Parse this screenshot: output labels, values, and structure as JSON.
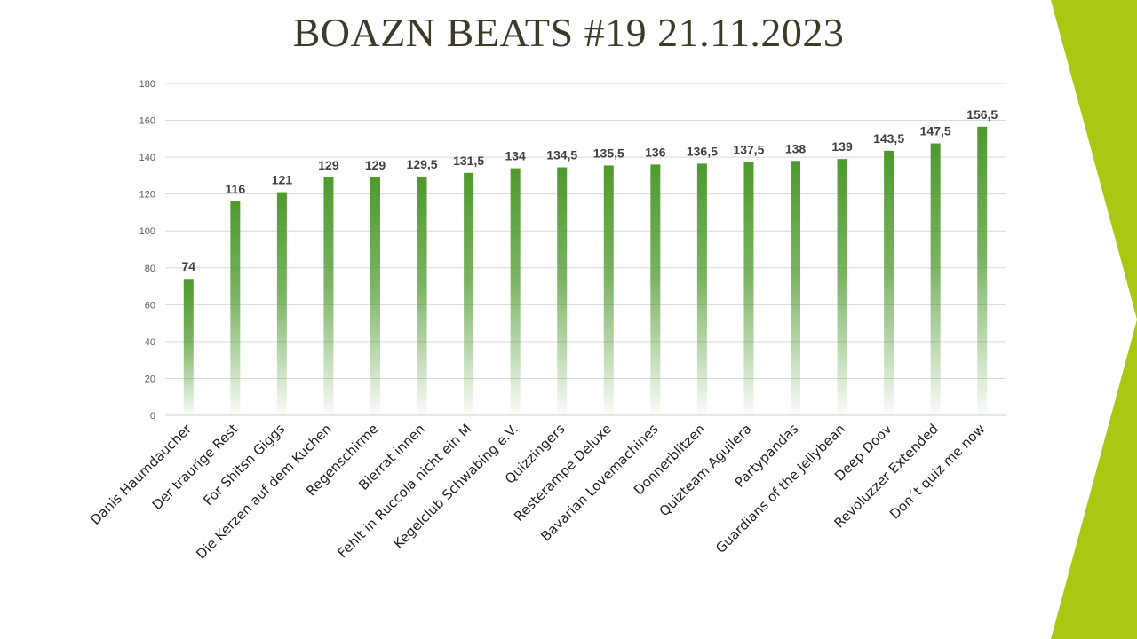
{
  "slide": {
    "title": "BOAZN BEATS #19 21.11.2023",
    "accent_color": "#aac811"
  },
  "chart_data": {
    "type": "bar",
    "title": "",
    "xlabel": "",
    "ylabel": "",
    "ylim": [
      0,
      180
    ],
    "yticks": [
      0,
      20,
      40,
      60,
      80,
      100,
      120,
      140,
      160,
      180
    ],
    "grid": true,
    "legend": "none",
    "bar_color": "#4e9a2e",
    "categories": [
      "Danis Haumdaucher",
      "Der traurige Rest",
      "For Shitsn Giggs",
      "Die Kerzen auf dem Kuchen",
      "Regenschirme",
      "Bierrat innen",
      "Fehlt in Ruccola nicht ein M",
      "Kegelclub Schwabing e.V.",
      "Quizzingers",
      "Resterampe Deluxe",
      "Bavarian Lovemachines",
      "Donnerblitzen",
      "Quizteam Aguilera",
      "Partypandas",
      "Guardians of the Jellybean",
      "Deep Doov",
      "Revoluzzer Extended",
      "Don´t quiz me now"
    ],
    "values": [
      74,
      116,
      121,
      129,
      129,
      129.5,
      131.5,
      134,
      134.5,
      135.5,
      136,
      136.5,
      137.5,
      138,
      139,
      143.5,
      147.5,
      156.5
    ],
    "data_labels": [
      "74",
      "116",
      "121",
      "129",
      "129",
      "129,5",
      "131,5",
      "134",
      "134,5",
      "135,5",
      "136",
      "136,5",
      "137,5",
      "138",
      "139",
      "143,5",
      "147,5",
      "156,5"
    ]
  }
}
